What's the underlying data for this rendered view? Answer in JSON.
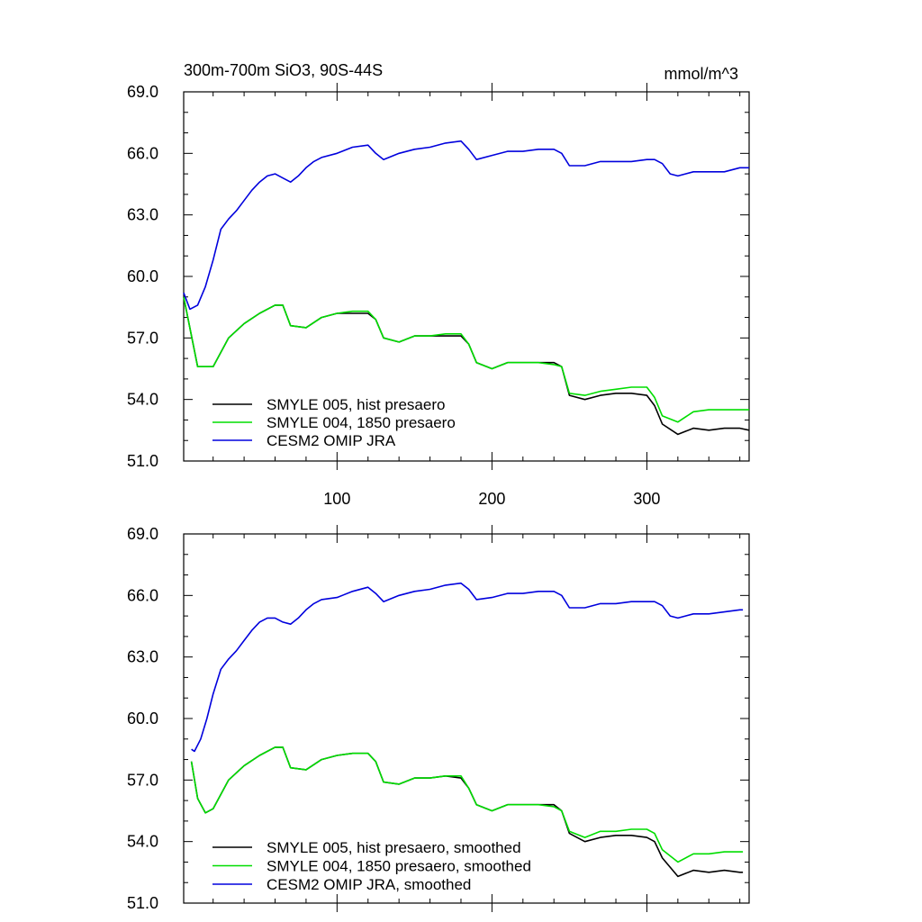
{
  "chart_data": [
    {
      "type": "line",
      "title": "300m-700m SiO3, 90S-44S",
      "units": "mmol/m^3",
      "xlabel": "",
      "ylabel": "",
      "xlim": [
        1,
        366
      ],
      "ylim": [
        51.0,
        69.0
      ],
      "xticks": [
        100,
        200,
        300
      ],
      "xtick_labels": [
        "100",
        "200",
        "300"
      ],
      "yticks": [
        51.0,
        54.0,
        57.0,
        60.0,
        63.0,
        66.0,
        69.0
      ],
      "ytick_labels": [
        "51.0",
        "54.0",
        "57.0",
        "60.0",
        "63.0",
        "66.0",
        "69.0"
      ],
      "grid": false,
      "legend_position": "bottom-left",
      "series": [
        {
          "name": "SMYLE 005, hist presaero",
          "color": "#000000",
          "x": [
            1,
            10,
            20,
            30,
            40,
            50,
            60,
            65,
            70,
            80,
            90,
            100,
            110,
            120,
            125,
            130,
            140,
            150,
            160,
            170,
            180,
            185,
            190,
            200,
            210,
            220,
            230,
            240,
            245,
            250,
            260,
            270,
            280,
            290,
            300,
            305,
            310,
            320,
            330,
            340,
            350,
            360,
            366
          ],
          "values": [
            59.0,
            55.6,
            55.6,
            57.0,
            57.7,
            58.2,
            58.6,
            58.6,
            57.6,
            57.5,
            58.0,
            58.2,
            58.2,
            58.2,
            57.9,
            57.0,
            56.8,
            57.1,
            57.1,
            57.1,
            57.1,
            56.7,
            55.8,
            55.5,
            55.8,
            55.8,
            55.8,
            55.8,
            55.6,
            54.2,
            54.0,
            54.2,
            54.3,
            54.3,
            54.2,
            53.7,
            52.8,
            52.3,
            52.6,
            52.5,
            52.6,
            52.6,
            52.5
          ]
        },
        {
          "name": "SMYLE 004, 1850 presaero",
          "color": "#00dd00",
          "x": [
            1,
            10,
            20,
            30,
            40,
            50,
            60,
            65,
            70,
            80,
            90,
            100,
            110,
            120,
            125,
            130,
            140,
            150,
            160,
            170,
            180,
            185,
            190,
            200,
            210,
            220,
            230,
            240,
            245,
            250,
            260,
            270,
            280,
            290,
            300,
            305,
            310,
            320,
            330,
            340,
            350,
            360,
            366
          ],
          "values": [
            59.0,
            55.6,
            55.6,
            57.0,
            57.7,
            58.2,
            58.6,
            58.6,
            57.6,
            57.5,
            58.0,
            58.2,
            58.3,
            58.3,
            57.9,
            57.0,
            56.8,
            57.1,
            57.1,
            57.2,
            57.2,
            56.7,
            55.8,
            55.5,
            55.8,
            55.8,
            55.8,
            55.7,
            55.6,
            54.3,
            54.2,
            54.4,
            54.5,
            54.6,
            54.6,
            54.1,
            53.2,
            52.9,
            53.4,
            53.5,
            53.5,
            53.5,
            53.5
          ]
        },
        {
          "name": "CESM2 OMIP JRA",
          "color": "#0000dd",
          "x": [
            1,
            5,
            10,
            15,
            20,
            25,
            30,
            35,
            40,
            45,
            50,
            55,
            60,
            65,
            70,
            75,
            80,
            85,
            90,
            100,
            110,
            120,
            125,
            130,
            140,
            150,
            160,
            170,
            180,
            185,
            190,
            200,
            210,
            220,
            230,
            240,
            245,
            250,
            260,
            270,
            280,
            290,
            300,
            305,
            310,
            315,
            320,
            330,
            340,
            350,
            360,
            366
          ],
          "values": [
            59.2,
            58.4,
            58.6,
            59.5,
            60.8,
            62.3,
            62.8,
            63.2,
            63.7,
            64.2,
            64.6,
            64.9,
            65.0,
            64.8,
            64.6,
            64.9,
            65.3,
            65.6,
            65.8,
            66.0,
            66.3,
            66.4,
            66.0,
            65.7,
            66.0,
            66.2,
            66.3,
            66.5,
            66.6,
            66.2,
            65.7,
            65.9,
            66.1,
            66.1,
            66.2,
            66.2,
            66.0,
            65.4,
            65.4,
            65.6,
            65.6,
            65.6,
            65.7,
            65.7,
            65.5,
            65.0,
            64.9,
            65.1,
            65.1,
            65.1,
            65.3,
            65.3
          ]
        }
      ]
    },
    {
      "type": "line",
      "title": "",
      "xlabel": "",
      "ylabel": "",
      "xlim": [
        1,
        366
      ],
      "ylim": [
        51.0,
        69.0
      ],
      "xticks": [
        100,
        200,
        300
      ],
      "xtick_labels": [],
      "yticks": [
        51.0,
        54.0,
        57.0,
        60.0,
        63.0,
        66.0,
        69.0
      ],
      "ytick_labels": [
        "51.0",
        "54.0",
        "57.0",
        "60.0",
        "63.0",
        "66.0",
        "69.0"
      ],
      "grid": false,
      "legend_position": "bottom-left",
      "series": [
        {
          "name": "SMYLE 005, hist presaero, smoothed",
          "color": "#000000",
          "x": [
            6,
            10,
            15,
            20,
            30,
            40,
            50,
            60,
            65,
            70,
            80,
            90,
            100,
            110,
            120,
            125,
            130,
            140,
            150,
            160,
            170,
            180,
            185,
            190,
            200,
            210,
            220,
            230,
            240,
            245,
            250,
            260,
            270,
            280,
            290,
            300,
            305,
            310,
            320,
            330,
            340,
            350,
            360,
            362
          ],
          "values": [
            57.9,
            56.1,
            55.4,
            55.6,
            57.0,
            57.7,
            58.2,
            58.6,
            58.6,
            57.6,
            57.5,
            58.0,
            58.2,
            58.3,
            58.3,
            57.9,
            56.9,
            56.8,
            57.1,
            57.1,
            57.2,
            57.1,
            56.6,
            55.8,
            55.5,
            55.8,
            55.8,
            55.8,
            55.8,
            55.5,
            54.4,
            54.0,
            54.2,
            54.3,
            54.3,
            54.2,
            54.0,
            53.2,
            52.3,
            52.6,
            52.5,
            52.6,
            52.5,
            52.5
          ]
        },
        {
          "name": "SMYLE 004, 1850 presaero, smoothed",
          "color": "#00dd00",
          "x": [
            6,
            10,
            15,
            20,
            30,
            40,
            50,
            60,
            65,
            70,
            80,
            90,
            100,
            110,
            120,
            125,
            130,
            140,
            150,
            160,
            170,
            180,
            185,
            190,
            200,
            210,
            220,
            230,
            240,
            245,
            250,
            260,
            270,
            280,
            290,
            300,
            305,
            310,
            320,
            330,
            340,
            350,
            360,
            362
          ],
          "values": [
            57.9,
            56.1,
            55.4,
            55.6,
            57.0,
            57.7,
            58.2,
            58.6,
            58.6,
            57.6,
            57.5,
            58.0,
            58.2,
            58.3,
            58.3,
            57.9,
            56.9,
            56.8,
            57.1,
            57.1,
            57.2,
            57.2,
            56.6,
            55.8,
            55.5,
            55.8,
            55.8,
            55.8,
            55.7,
            55.5,
            54.5,
            54.2,
            54.5,
            54.5,
            54.6,
            54.6,
            54.4,
            53.6,
            53.0,
            53.4,
            53.4,
            53.5,
            53.5,
            53.5
          ]
        },
        {
          "name": "CESM2 OMIP JRA, smoothed",
          "color": "#0000dd",
          "x": [
            6,
            8,
            12,
            16,
            20,
            25,
            30,
            35,
            40,
            45,
            50,
            55,
            60,
            65,
            70,
            75,
            80,
            85,
            90,
            100,
            110,
            120,
            125,
            130,
            140,
            150,
            160,
            170,
            180,
            185,
            190,
            200,
            210,
            220,
            230,
            240,
            245,
            250,
            260,
            270,
            280,
            290,
            300,
            305,
            310,
            315,
            320,
            330,
            340,
            350,
            360,
            362
          ],
          "values": [
            58.5,
            58.4,
            59.0,
            60.0,
            61.2,
            62.4,
            62.9,
            63.3,
            63.8,
            64.3,
            64.7,
            64.9,
            64.9,
            64.7,
            64.6,
            64.9,
            65.3,
            65.6,
            65.8,
            65.9,
            66.2,
            66.4,
            66.1,
            65.7,
            66.0,
            66.2,
            66.3,
            66.5,
            66.6,
            66.3,
            65.8,
            65.9,
            66.1,
            66.1,
            66.2,
            66.2,
            66.0,
            65.4,
            65.4,
            65.6,
            65.6,
            65.7,
            65.7,
            65.7,
            65.5,
            65.0,
            64.9,
            65.1,
            65.1,
            65.2,
            65.3,
            65.3
          ]
        }
      ]
    }
  ]
}
